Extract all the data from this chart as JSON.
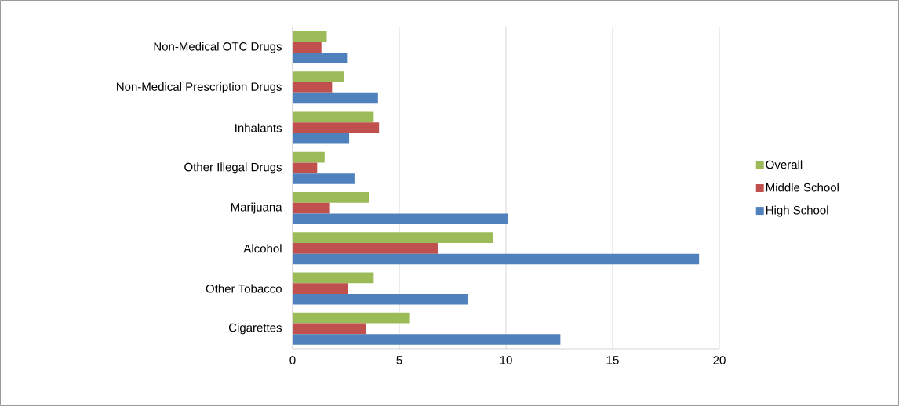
{
  "chart_data": {
    "type": "bar",
    "orientation": "horizontal",
    "categories": [
      "Non-Medical OTC Drugs",
      "Non-Medical Prescription Drugs",
      "Inhalants",
      "Other Illegal Drugs",
      "Marijuana",
      "Alcohol",
      "Other Tobacco",
      "Cigarettes"
    ],
    "series": [
      {
        "name": "Overall",
        "color": "#9bbb59",
        "values": [
          1.6,
          2.4,
          3.8,
          1.5,
          3.6,
          9.4,
          3.8,
          5.5
        ]
      },
      {
        "name": "Middle School",
        "color": "#c0504d",
        "values": [
          1.35,
          1.85,
          4.05,
          1.15,
          1.75,
          6.8,
          2.6,
          3.45
        ]
      },
      {
        "name": "High School",
        "color": "#4f81bd",
        "values": [
          2.55,
          4.0,
          2.65,
          2.9,
          10.1,
          19.05,
          8.2,
          12.55
        ]
      }
    ],
    "xlim": [
      0,
      20
    ],
    "xticks": [
      0,
      5,
      10,
      15,
      20
    ],
    "grid": "x",
    "legend": "right"
  }
}
